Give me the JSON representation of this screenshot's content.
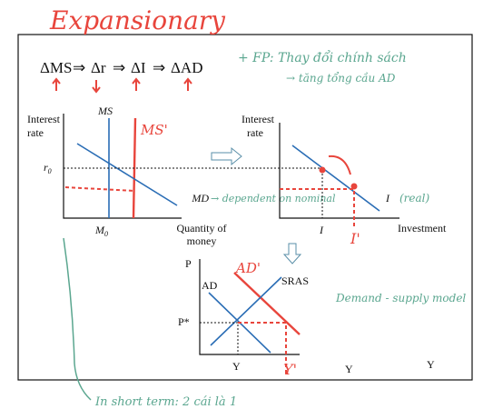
{
  "annotations": {
    "title": "Expansionary",
    "fp_line1": "+ FP: Thay đổi chính sách",
    "fp_line2": "→ tăng tổng cầu AD",
    "md_note": "→ dependent on nominal",
    "real": "(real)",
    "model_note": "Demand - supply model",
    "short_term": "In short term: 2 cái là 1"
  },
  "chain": {
    "steps": [
      "ΔMS",
      "Δr",
      "ΔI",
      "ΔAD"
    ],
    "separator": "⇒"
  },
  "money_market": {
    "y_label_1": "Interest",
    "y_label_2": "rate",
    "supply": "MS",
    "supply_shift": "MS'",
    "rate": "r",
    "rate_sub": "0",
    "demand": "MD",
    "quantity": "M",
    "quantity_sub": "0",
    "x_label_1": "Quantity of",
    "x_label_2": "money"
  },
  "investment_market": {
    "y_label_1": "Interest",
    "y_label_2": "rate",
    "curve": "I",
    "level": "I",
    "level_shift": "I'",
    "x_label": "Investment"
  },
  "ad_as": {
    "y_label": "P",
    "demand": "AD",
    "demand_shift": "AD'",
    "supply": "SRAS",
    "price": "P*",
    "output": "Y",
    "output_shift": "Y'",
    "x_label": "Y",
    "outside_label": "Y"
  }
}
